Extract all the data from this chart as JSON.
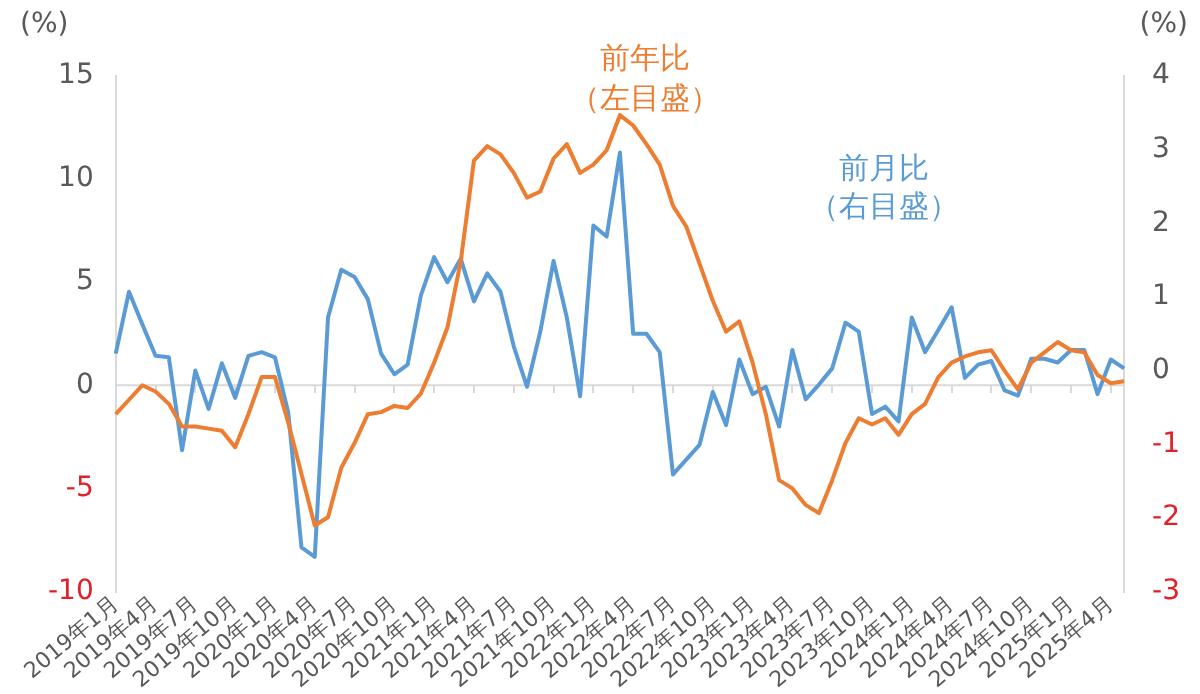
{
  "chart_data": {
    "type": "line",
    "ylabel": "(%)",
    "y2label": "(%)",
    "categories": [
      "2019年1月",
      null,
      null,
      "2019年4月",
      null,
      null,
      "2019年7月",
      null,
      null,
      "2019年10月",
      null,
      null,
      "2020年1月",
      null,
      null,
      "2020年4月",
      null,
      null,
      "2020年7月",
      null,
      null,
      "2020年10月",
      null,
      null,
      "2021年1月",
      null,
      null,
      "2021年4月",
      null,
      null,
      "2021年7月",
      null,
      null,
      "2021年10月",
      null,
      null,
      "2022年1月",
      null,
      null,
      "2022年4月",
      null,
      null,
      "2022年7月",
      null,
      null,
      "2022年10月",
      null,
      null,
      "2023年1月",
      null,
      null,
      "2023年4月",
      null,
      null,
      "2023年7月",
      null,
      null,
      "2023年10月",
      null,
      null,
      "2024年1月",
      null,
      null,
      "2024年4月",
      null,
      null,
      "2024年7月",
      null,
      null,
      "2024年10月",
      null,
      null,
      "2025年1月",
      null,
      null,
      "2025年4月",
      null
    ],
    "series": [
      {
        "name": "前年比（左目盛）",
        "color": "#ed7d31",
        "values": [
          -1.4,
          -0.7,
          0,
          -0.3,
          -0.9,
          -2.0,
          -2.0,
          -2.1,
          -2.2,
          -3.0,
          -1.4,
          0.4,
          0.4,
          -1.8,
          -4.3,
          -6.8,
          -6.4,
          -4.0,
          -2.8,
          -1.4,
          -1.3,
          -1.0,
          -1.1,
          -0.4,
          1.1,
          2.8,
          6.0,
          10.9,
          11.6,
          11.2,
          10.3,
          9.1,
          9.4,
          11.0,
          11.7,
          10.3,
          10.7,
          11.4,
          13.1,
          12.6,
          11.7,
          10.7,
          8.7,
          7.7,
          5.9,
          4.1,
          2.6,
          3.1,
          1.1,
          -1.4,
          -4.6,
          -5.0,
          -5.8,
          -6.2,
          -4.6,
          -2.8,
          -1.6,
          -1.9,
          -1.6,
          -2.4,
          -1.4,
          -0.9,
          0.4,
          1.1,
          1.4,
          1.6,
          1.7,
          0.7,
          -0.2,
          1.1,
          1.6,
          2.1,
          1.7,
          1.6,
          0.5,
          0.1,
          0.2
        ]
      },
      {
        "name": "前月比（右目盛）",
        "color": "#5b9bd5",
        "axis": "y2",
        "values": [
          0.23,
          1.07,
          0.63,
          0.2,
          0.18,
          -1.08,
          0,
          -0.52,
          0.1,
          -0.37,
          0.2,
          0.25,
          0.18,
          -0.57,
          -2.4,
          -2.53,
          0.72,
          1.37,
          1.27,
          0.97,
          0.23,
          -0.05,
          0.08,
          1.02,
          1.54,
          1.2,
          1.52,
          0.94,
          1.32,
          1.07,
          0.33,
          -0.22,
          0.53,
          1.49,
          0.72,
          -0.35,
          1.97,
          1.82,
          2.96,
          0.5,
          0.5,
          0.25,
          -1.41,
          -1.21,
          -1.01,
          -0.29,
          -0.74,
          0.15,
          -0.32,
          -0.22,
          -0.76,
          0.28,
          -0.39,
          -0.19,
          0.03,
          0.65,
          0.53,
          -0.59,
          -0.49,
          -0.69,
          0.72,
          0.25,
          0.55,
          0.86,
          -0.1,
          0.08,
          0.13,
          -0.27,
          -0.34,
          0.16,
          0.16,
          0.11,
          0.28,
          0.28,
          -0.32,
          0.15,
          0.03
        ]
      }
    ],
    "ylim": [
      -10,
      15
    ],
    "yticks": [
      -10,
      -5,
      0,
      5,
      10,
      15
    ],
    "y2lim": [
      -3,
      4
    ],
    "y2ticks": [
      -3,
      -2,
      -1,
      0,
      1,
      2,
      3,
      4
    ],
    "ref_lines": [
      {
        "axis": "y",
        "value": 0,
        "color": "#d9d9d9"
      }
    ],
    "grid": false,
    "legend": false,
    "marker": "none",
    "line_style": "solid"
  }
}
